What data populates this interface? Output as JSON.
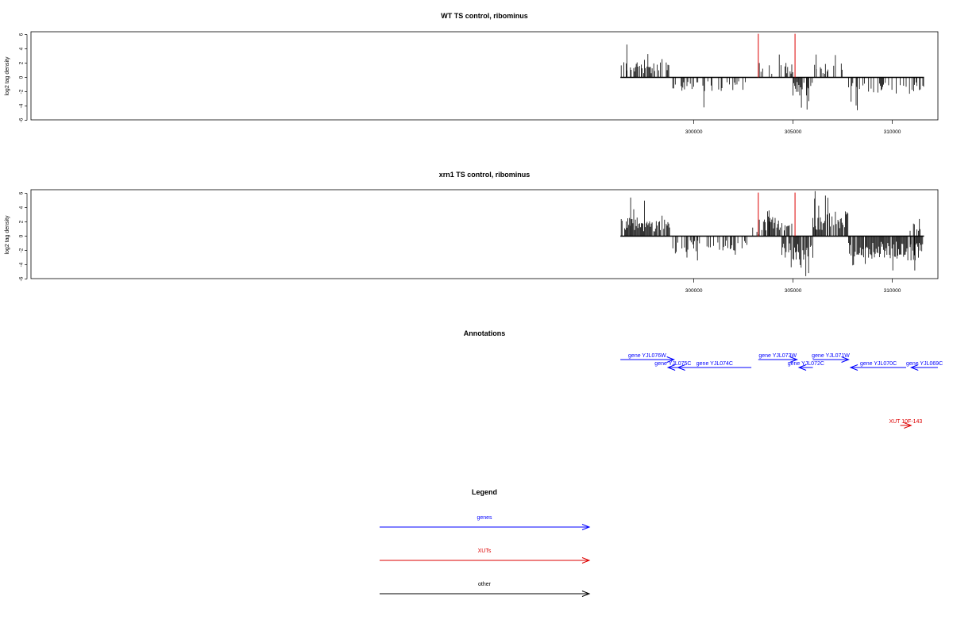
{
  "chart_data": [
    {
      "type": "bar",
      "title": "WT TS control, ribominus",
      "ylabel": "log2 tag density",
      "xlim": [
        266600,
        312300
      ],
      "ylim": [
        -6,
        6.5
      ],
      "y_ticks": [
        6,
        4,
        2,
        0,
        -2,
        -4,
        -6
      ],
      "x_ticks": [
        300000,
        305000,
        310000
      ],
      "data_range": [
        296300,
        311600
      ],
      "marker_lines": [
        {
          "x": 303250,
          "color": "#dd0000"
        },
        {
          "x": 305100,
          "color": "#dd0000"
        }
      ],
      "segments": [
        {
          "from": 296300,
          "to": 298800,
          "sign": 1,
          "density": 0.65,
          "median": 1.6,
          "peak": 4.6
        },
        {
          "from": 298900,
          "to": 302700,
          "sign": -1,
          "density": 0.35,
          "median": 1.4,
          "peak": 4.2
        },
        {
          "from": 302800,
          "to": 303300,
          "sign": 0,
          "density": 0,
          "median": 0,
          "peak": 0
        },
        {
          "from": 303300,
          "to": 305000,
          "sign": 1,
          "density": 0.45,
          "median": 1.4,
          "peak": 3.2
        },
        {
          "from": 305000,
          "to": 305800,
          "sign": -1,
          "density": 0.75,
          "median": 1.8,
          "peak": 4.5
        },
        {
          "from": 305800,
          "to": 306000,
          "sign": -1,
          "density": 0.2,
          "median": 0.8,
          "peak": 1.2
        },
        {
          "from": 306000,
          "to": 307500,
          "sign": 1,
          "density": 0.45,
          "median": 1.4,
          "peak": 3.2
        },
        {
          "from": 307500,
          "to": 307800,
          "sign": 0,
          "density": 0,
          "median": 0,
          "peak": 0
        },
        {
          "from": 307800,
          "to": 311600,
          "sign": -1,
          "density": 0.45,
          "median": 1.6,
          "peak": 4.6
        }
      ]
    },
    {
      "type": "bar",
      "title": "xrn1 TS control, ribominus",
      "ylabel": "log2 tag density",
      "xlim": [
        266600,
        312300
      ],
      "ylim": [
        -6,
        6.5
      ],
      "y_ticks": [
        6,
        4,
        2,
        0,
        -2,
        -4,
        -6
      ],
      "x_ticks": [
        300000,
        305000,
        310000
      ],
      "data_range": [
        296300,
        311600
      ],
      "marker_lines": [
        {
          "x": 303250,
          "color": "#dd0000"
        },
        {
          "x": 305100,
          "color": "#dd0000"
        }
      ],
      "segments": [
        {
          "from": 296300,
          "to": 298800,
          "sign": 1,
          "density": 0.85,
          "median": 1.8,
          "peak": 5.4
        },
        {
          "from": 298900,
          "to": 302800,
          "sign": -1,
          "density": 0.5,
          "median": 1.6,
          "peak": 3.4
        },
        {
          "from": 302800,
          "to": 303300,
          "sign": 1,
          "density": 0.25,
          "median": 0.8,
          "peak": 1.2
        },
        {
          "from": 303300,
          "to": 305000,
          "sign": 1,
          "density": 0.8,
          "median": 1.8,
          "peak": 3.6
        },
        {
          "from": 304400,
          "to": 306000,
          "sign": -1,
          "density": 0.9,
          "median": 2.4,
          "peak": 5.6
        },
        {
          "from": 306000,
          "to": 307800,
          "sign": 1,
          "density": 0.9,
          "median": 2.4,
          "peak": 6.3
        },
        {
          "from": 307800,
          "to": 311000,
          "sign": -1,
          "density": 0.85,
          "median": 2.2,
          "peak": 4.8
        },
        {
          "from": 310900,
          "to": 311600,
          "sign": 1,
          "density": 0.5,
          "median": 1.4,
          "peak": 2.4
        },
        {
          "from": 310900,
          "to": 311600,
          "sign": -1,
          "density": 0.85,
          "median": 2.4,
          "peak": 4.8
        }
      ]
    }
  ],
  "annotations": {
    "title": "Annotations",
    "features": [
      {
        "label": "gene YJL076W",
        "start": 296300,
        "end": 299000,
        "strand": "+",
        "row": 0,
        "color": "#0000ff"
      },
      {
        "label": "gene YJL075C",
        "start": 298700,
        "end": 299200,
        "strand": "-",
        "row": 1,
        "color": "#0000ff"
      },
      {
        "label": "gene YJL074C",
        "start": 299200,
        "end": 302900,
        "strand": "-",
        "row": 1,
        "color": "#0000ff"
      },
      {
        "label": "gene YJL073W",
        "start": 303250,
        "end": 305200,
        "strand": "+",
        "row": 0,
        "color": "#0000ff"
      },
      {
        "label": "gene YJL072C",
        "start": 305300,
        "end": 306000,
        "strand": "-",
        "row": 1,
        "color": "#0000ff"
      },
      {
        "label": "gene YJL071W",
        "start": 306000,
        "end": 307800,
        "strand": "+",
        "row": 0,
        "color": "#0000ff"
      },
      {
        "label": "gene YJL070C",
        "start": 307900,
        "end": 310700,
        "strand": "-",
        "row": 1,
        "color": "#0000ff"
      },
      {
        "label": "gene YJL069C",
        "start": 310950,
        "end": 312300,
        "strand": "-",
        "row": 1,
        "color": "#0000ff"
      },
      {
        "label": "XUT 10F-143",
        "start": 310400,
        "end": 310950,
        "strand": "+",
        "row": 2,
        "color": "#dd0000"
      }
    ]
  },
  "legend": {
    "title": "Legend",
    "items": [
      {
        "label": "genes",
        "color": "#0000ff"
      },
      {
        "label": "XUTs",
        "color": "#dd0000"
      },
      {
        "label": "other",
        "color": "#000000"
      }
    ]
  }
}
